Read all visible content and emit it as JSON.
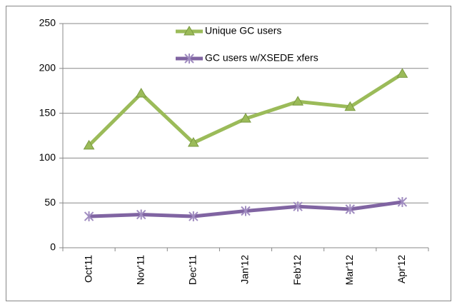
{
  "chart_data": {
    "type": "line",
    "categories": [
      "Oct'11",
      "Nov'11",
      "Dec'11",
      "Jan'12",
      "Feb'12",
      "Mar'12",
      "Apr'12"
    ],
    "series": [
      {
        "name": "Unique GC users",
        "color": "#9bbb59",
        "marker": "triangle",
        "values": [
          114,
          172,
          117,
          144,
          163,
          157,
          194
        ]
      },
      {
        "name": "GC users w/XSEDE xfers",
        "color": "#8064a2",
        "marker": "star",
        "values": [
          35,
          37,
          35,
          41,
          46,
          43,
          51
        ]
      }
    ],
    "ylim": [
      0,
      250
    ],
    "yticks": [
      0,
      50,
      100,
      150,
      200,
      250
    ],
    "grid": true,
    "legend": "top"
  }
}
